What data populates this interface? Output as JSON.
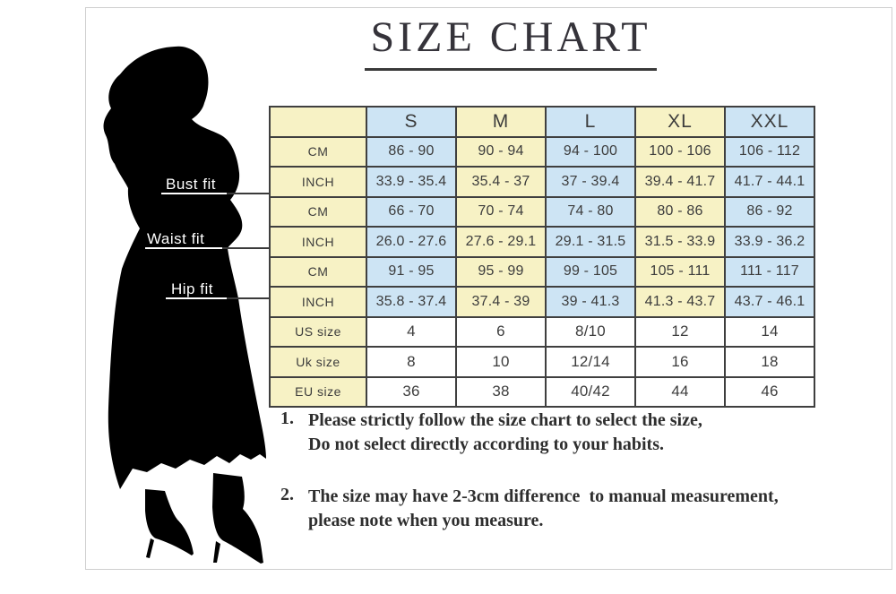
{
  "title": "SIZE CHART",
  "figure": {
    "labels": [
      {
        "text": "Bust fit"
      },
      {
        "text": "Waist fit"
      },
      {
        "text": "Hip fit"
      }
    ]
  },
  "table": {
    "columns": [
      "S",
      "M",
      "L",
      "XL",
      "XXL"
    ],
    "rows": [
      {
        "label": "CM",
        "group": "bust",
        "values": [
          "86 - 90",
          "90 - 94",
          "94 - 100",
          "100 - 106",
          "106 - 112"
        ]
      },
      {
        "label": "INCH",
        "group": "bust",
        "values": [
          "33.9 - 35.4",
          "35.4 - 37",
          "37 - 39.4",
          "39.4 - 41.7",
          "41.7 - 44.1"
        ]
      },
      {
        "label": "CM",
        "group": "waist",
        "values": [
          "66 - 70",
          "70 - 74",
          "74 - 80",
          "80 - 86",
          "86 - 92"
        ]
      },
      {
        "label": "INCH",
        "group": "waist",
        "values": [
          "26.0 - 27.6",
          "27.6 - 29.1",
          "29.1 - 31.5",
          "31.5 - 33.9",
          "33.9 - 36.2"
        ]
      },
      {
        "label": "CM",
        "group": "hip",
        "values": [
          "91 - 95",
          "95 - 99",
          "99 - 105",
          "105 - 111",
          "111 - 117"
        ]
      },
      {
        "label": "INCH",
        "group": "hip",
        "values": [
          "35.8 - 37.4",
          "37.4 - 39",
          "39 - 41.3",
          "41.3 - 43.7",
          "43.7 - 46.1"
        ]
      },
      {
        "label": "US size",
        "group": "conversion",
        "values": [
          "4",
          "6",
          "8/10",
          "12",
          "14"
        ]
      },
      {
        "label": "Uk size",
        "group": "conversion",
        "values": [
          "8",
          "10",
          "12/14",
          "16",
          "18"
        ]
      },
      {
        "label": "EU size",
        "group": "conversion",
        "values": [
          "36",
          "38",
          "40/42",
          "44",
          "46"
        ]
      }
    ]
  },
  "notes": [
    {
      "number": "1.",
      "lines": [
        "Please strictly follow the size chart to select the size,",
        "Do not select directly according to your habits."
      ]
    },
    {
      "number": "2.",
      "lines": [
        "The size may have 2-3cm difference  to manual measurement,",
        "please note when you measure."
      ]
    }
  ],
  "colors": {
    "cell_blue": "#cde4f4",
    "cell_yellow": "#f7f2c5",
    "table_border": "#3f3f3f",
    "text": "#3c3c3c",
    "frame": "#cfcfcf",
    "silhouette": "#000000"
  },
  "chart_data": {
    "type": "table",
    "title": "SIZE CHART",
    "columns": [
      "",
      "S",
      "M",
      "L",
      "XL",
      "XXL"
    ],
    "rows": [
      [
        "Bust fit CM",
        "86 - 90",
        "90 - 94",
        "94 - 100",
        "100 - 106",
        "106 - 112"
      ],
      [
        "Bust fit INCH",
        "33.9 - 35.4",
        "35.4 - 37",
        "37 - 39.4",
        "39.4 - 41.7",
        "41.7 - 44.1"
      ],
      [
        "Waist fit CM",
        "66 - 70",
        "70 - 74",
        "74 - 80",
        "80 - 86",
        "86 - 92"
      ],
      [
        "Waist fit INCH",
        "26.0 - 27.6",
        "27.6 - 29.1",
        "29.1 - 31.5",
        "31.5 - 33.9",
        "33.9 - 36.2"
      ],
      [
        "Hip fit CM",
        "91 - 95",
        "95 - 99",
        "99 - 105",
        "105 - 111",
        "111 - 117"
      ],
      [
        "Hip fit INCH",
        "35.8 - 37.4",
        "37.4 - 39",
        "39 - 41.3",
        "41.3 - 43.7",
        "43.7 - 46.1"
      ],
      [
        "US size",
        "4",
        "6",
        "8/10",
        "12",
        "14"
      ],
      [
        "Uk size",
        "8",
        "10",
        "12/14",
        "16",
        "18"
      ],
      [
        "EU size",
        "36",
        "38",
        "40/42",
        "44",
        "46"
      ]
    ]
  }
}
